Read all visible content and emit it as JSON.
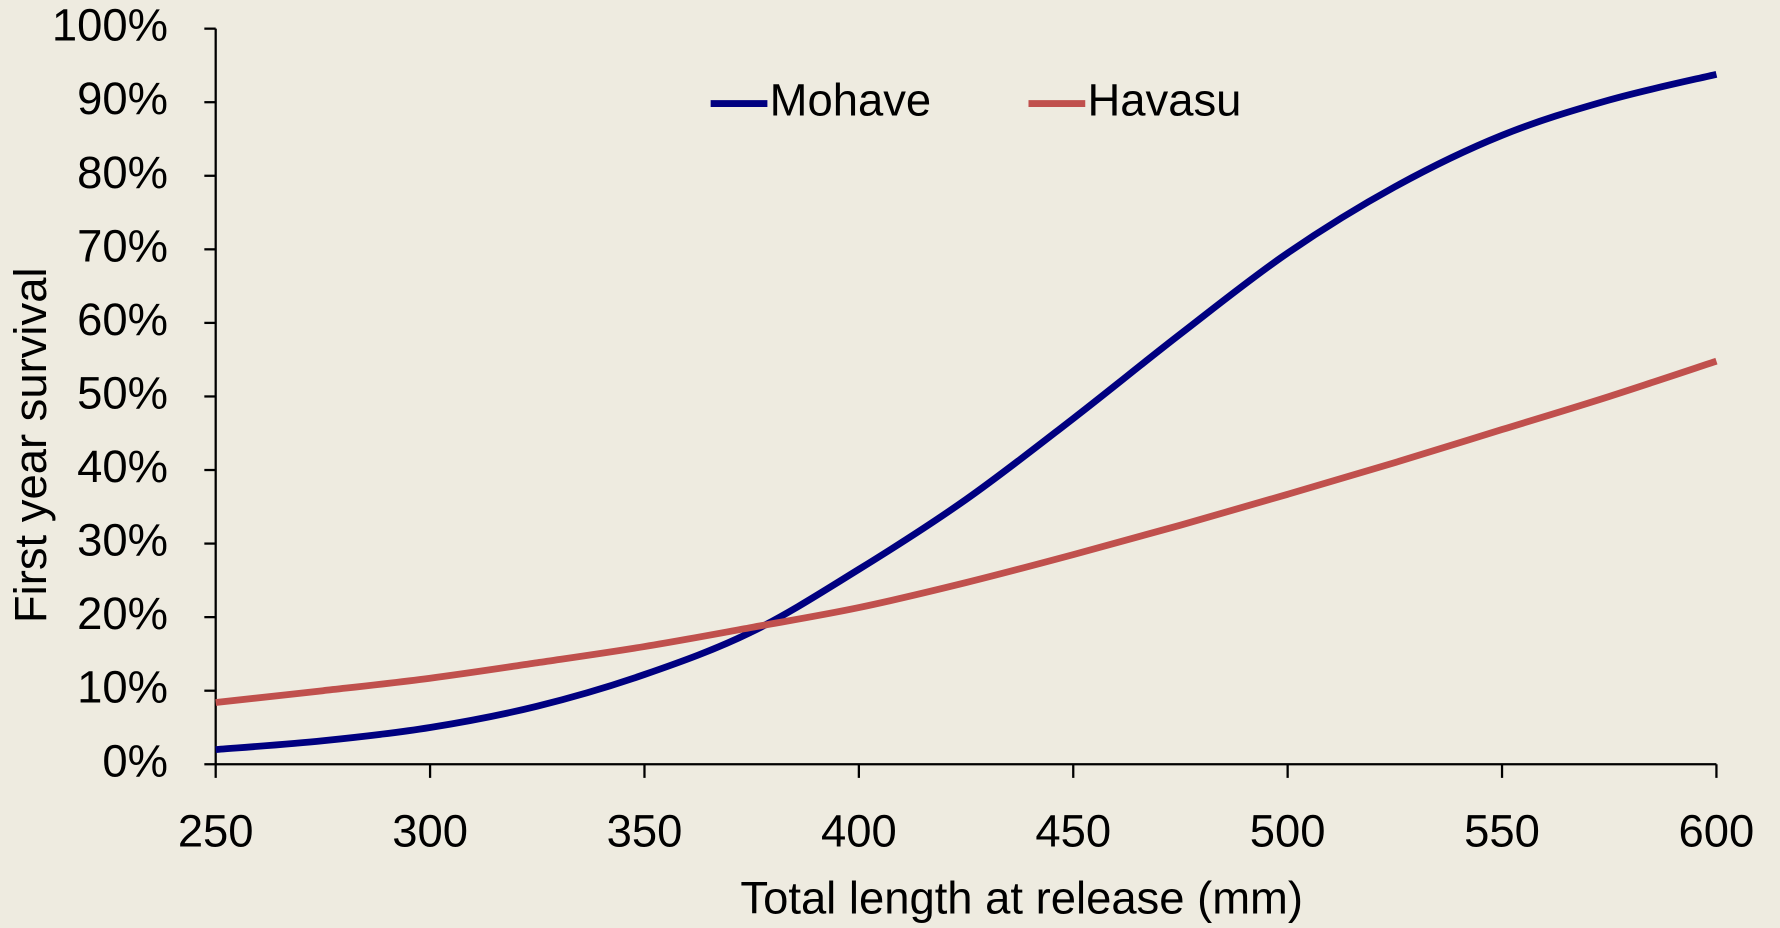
{
  "chart_data": {
    "type": "line",
    "x_label": "Total length at release (mm)",
    "y_label": "First year survival",
    "x": [
      250,
      275,
      300,
      325,
      350,
      375,
      400,
      425,
      450,
      475,
      500,
      525,
      550,
      575,
      600
    ],
    "series": [
      {
        "name": "Mohave",
        "color": "#000080",
        "values": [
          2,
          3.2,
          5,
          7.9,
          12.2,
          18,
          26.5,
          36,
          47,
          58.5,
          69.5,
          78.5,
          85.5,
          90.3,
          93.8
        ]
      },
      {
        "name": "Havasu",
        "color": "#c0504d",
        "values": [
          8.4,
          10,
          11.7,
          13.8,
          16,
          18.6,
          21.3,
          24.7,
          28.5,
          32.5,
          36.7,
          41,
          45.5,
          50,
          54.8
        ]
      }
    ],
    "xlim": [
      250,
      600
    ],
    "xticks": [
      250,
      300,
      350,
      400,
      450,
      500,
      550,
      600
    ],
    "ylim": [
      0,
      100
    ],
    "yticks": [
      {
        "value": 0,
        "label": "0%"
      },
      {
        "value": 10,
        "label": "10%"
      },
      {
        "value": 20,
        "label": "20%"
      },
      {
        "value": 30,
        "label": "30%"
      },
      {
        "value": 40,
        "label": "40%"
      },
      {
        "value": 50,
        "label": "50%"
      },
      {
        "value": 60,
        "label": "60%"
      },
      {
        "value": 70,
        "label": "70%"
      },
      {
        "value": 80,
        "label": "80%"
      },
      {
        "value": 90,
        "label": "90%"
      },
      {
        "value": 100,
        "label": "100%"
      }
    ],
    "legend": "top"
  }
}
